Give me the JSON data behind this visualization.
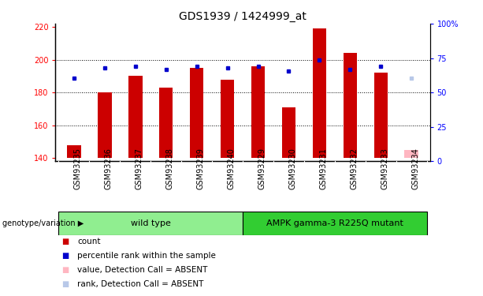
{
  "title": "GDS1939 / 1424999_at",
  "samples": [
    "GSM93235",
    "GSM93236",
    "GSM93237",
    "GSM93238",
    "GSM93239",
    "GSM93240",
    "GSM93229",
    "GSM93230",
    "GSM93231",
    "GSM93232",
    "GSM93233",
    "GSM93234"
  ],
  "count_values": [
    148,
    180,
    190,
    183,
    195,
    188,
    196,
    171,
    219,
    204,
    192,
    null
  ],
  "rank_values": [
    189,
    195,
    196,
    194,
    196,
    195,
    196,
    193,
    200,
    194,
    196,
    null
  ],
  "absent_count": [
    null,
    null,
    null,
    null,
    null,
    null,
    null,
    null,
    null,
    null,
    null,
    145
  ],
  "absent_rank": [
    null,
    null,
    null,
    null,
    null,
    null,
    null,
    null,
    null,
    null,
    null,
    189
  ],
  "groups": [
    {
      "label": "wild type",
      "start": 0,
      "end": 6,
      "color": "#90ee90"
    },
    {
      "label": "AMPK gamma-3 R225Q mutant",
      "start": 6,
      "end": 12,
      "color": "#32cd32"
    }
  ],
  "ylim_left": [
    138,
    222
  ],
  "ylim_right": [
    0,
    100
  ],
  "yticks_left": [
    140,
    160,
    180,
    200,
    220
  ],
  "yticks_right": [
    0,
    25,
    50,
    75,
    100
  ],
  "yticklabels_right": [
    "0",
    "25",
    "50",
    "75",
    "100%"
  ],
  "bar_color": "#cc0000",
  "rank_dot_color": "#0000cc",
  "absent_bar_color": "#ffb6c1",
  "absent_rank_color": "#b8c8e8",
  "title_fontsize": 10,
  "tick_fontsize": 7,
  "label_fontsize": 7,
  "legend_fontsize": 7.5,
  "group_fontsize": 8
}
